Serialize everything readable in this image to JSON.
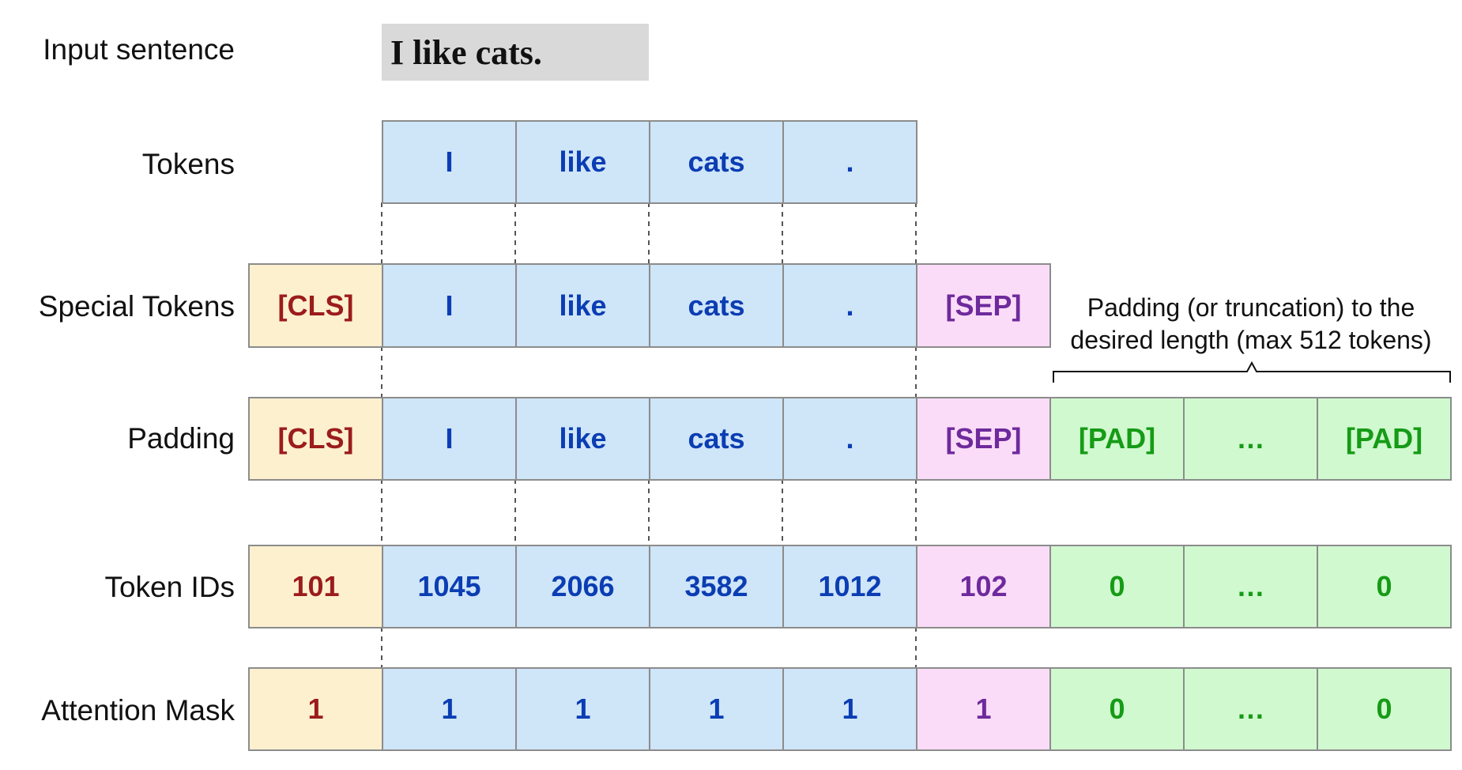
{
  "input": {
    "label": "Input sentence",
    "sentence": "I like cats."
  },
  "rows": {
    "tokens": {
      "label": "Tokens",
      "cells": [
        "I",
        "like",
        "cats",
        "."
      ]
    },
    "special": {
      "label": "Special Tokens",
      "cells": [
        "[CLS]",
        "I",
        "like",
        "cats",
        ".",
        "[SEP]"
      ]
    },
    "padding": {
      "label": "Padding",
      "cells": [
        "[CLS]",
        "I",
        "like",
        "cats",
        ".",
        "[SEP]",
        "[PAD]",
        "…",
        "[PAD]"
      ]
    },
    "ids": {
      "label": "Token IDs",
      "cells": [
        "101",
        "1045",
        "2066",
        "3582",
        "1012",
        "102",
        "0",
        "…",
        "0"
      ]
    },
    "mask": {
      "label": "Attention Mask",
      "cells": [
        "1",
        "1",
        "1",
        "1",
        "1",
        "1",
        "0",
        "…",
        "0"
      ]
    }
  },
  "note": {
    "line1": "Padding (or truncation) to the",
    "line2": "desired length (max 512 tokens)"
  },
  "colors": {
    "cls_fill": "#fdf0cf",
    "cls_text": "#9b1c1c",
    "token_fill": "#cfe5f8",
    "token_text": "#0b3db3",
    "sep_fill": "#fbdcf8",
    "sep_text": "#6e2a9c",
    "pad_fill": "#d0f9cf",
    "pad_text": "#169b16",
    "input_fill": "#d9d9d9"
  }
}
